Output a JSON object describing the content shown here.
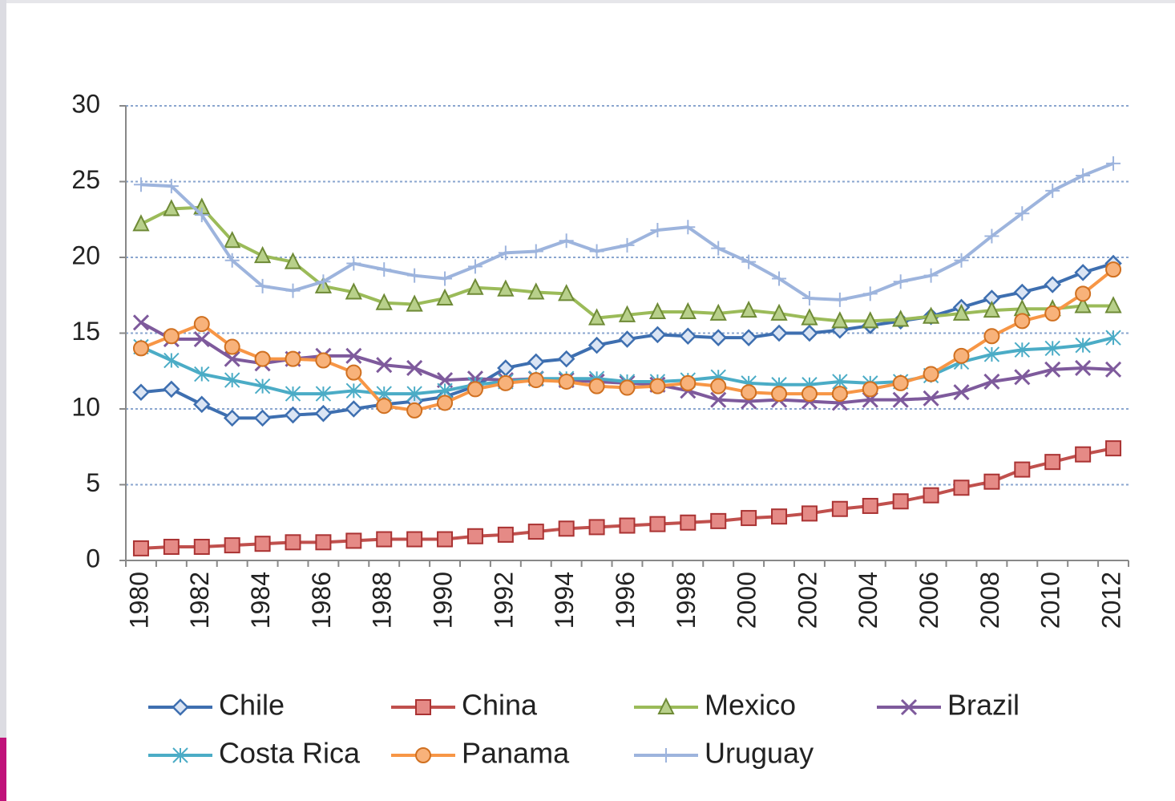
{
  "chart_data": {
    "type": "line",
    "categories": [
      "1980",
      null,
      "1982",
      null,
      "1984",
      null,
      "1986",
      null,
      "1988",
      null,
      "1990",
      null,
      "1992",
      null,
      "1994",
      null,
      "1996",
      null,
      "1998",
      null,
      "2000",
      null,
      "2002",
      null,
      "2004",
      null,
      "2006",
      null,
      "2008",
      null,
      "2010",
      null,
      "2012"
    ],
    "ylim": [
      0,
      30
    ],
    "yticks": [
      0,
      5,
      10,
      15,
      20,
      25,
      30
    ],
    "grid": true,
    "series": [
      {
        "name": "Chile",
        "color": "#3e6fb0",
        "marker": "diamond",
        "values": [
          11.1,
          11.3,
          10.3,
          9.4,
          9.4,
          9.6,
          9.7,
          10.0,
          10.3,
          10.5,
          10.8,
          11.5,
          12.7,
          13.1,
          13.3,
          14.2,
          14.6,
          14.9,
          14.8,
          14.7,
          14.7,
          15.0,
          15.0,
          15.2,
          15.5,
          15.8,
          16.1,
          16.7,
          17.3,
          17.7,
          18.2,
          19.0,
          19.6
        ]
      },
      {
        "name": "China",
        "color": "#c0504d",
        "marker": "square",
        "values": [
          0.8,
          0.9,
          0.9,
          1.0,
          1.1,
          1.2,
          1.2,
          1.3,
          1.4,
          1.4,
          1.4,
          1.6,
          1.7,
          1.9,
          2.1,
          2.2,
          2.3,
          2.4,
          2.5,
          2.6,
          2.8,
          2.9,
          3.1,
          3.4,
          3.6,
          3.9,
          4.3,
          4.8,
          5.2,
          6.0,
          6.5,
          7.0,
          7.4
        ]
      },
      {
        "name": "Mexico",
        "color": "#9bbb59",
        "marker": "triangle",
        "values": [
          22.2,
          23.2,
          23.3,
          21.1,
          20.1,
          19.7,
          18.1,
          17.7,
          17.0,
          16.9,
          17.3,
          18.0,
          17.9,
          17.7,
          17.6,
          16.0,
          16.2,
          16.4,
          16.4,
          16.3,
          16.5,
          16.3,
          16.0,
          15.8,
          15.8,
          15.9,
          16.1,
          16.3,
          16.5,
          16.6,
          16.6,
          16.8,
          16.8
        ]
      },
      {
        "name": "Brazil",
        "color": "#7e5a9c",
        "marker": "x",
        "values": [
          15.7,
          14.6,
          14.6,
          13.3,
          13.0,
          13.3,
          13.5,
          13.5,
          12.9,
          12.7,
          11.9,
          12.0,
          11.9,
          12.0,
          11.9,
          11.8,
          11.7,
          11.6,
          11.2,
          10.6,
          10.5,
          10.6,
          10.5,
          10.4,
          10.6,
          10.6,
          10.7,
          11.1,
          11.8,
          12.1,
          12.6,
          12.7,
          12.6
        ]
      },
      {
        "name": "Costa Rica",
        "color": "#4bacc6",
        "marker": "asterisk",
        "values": [
          14.1,
          13.2,
          12.3,
          11.9,
          11.5,
          11.0,
          11.0,
          11.2,
          11.0,
          11.0,
          11.2,
          11.6,
          11.8,
          12.0,
          12.0,
          12.0,
          11.8,
          11.8,
          11.9,
          12.1,
          11.7,
          11.6,
          11.6,
          11.8,
          11.7,
          11.8,
          12.2,
          13.1,
          13.6,
          13.9,
          14.0,
          14.2,
          14.7
        ]
      },
      {
        "name": "Panama",
        "color": "#f79646",
        "marker": "circle",
        "values": [
          14.0,
          14.8,
          15.6,
          14.1,
          13.3,
          13.3,
          13.2,
          12.4,
          10.2,
          9.9,
          10.4,
          11.3,
          11.7,
          11.9,
          11.8,
          11.5,
          11.4,
          11.5,
          11.7,
          11.5,
          11.1,
          11.0,
          11.0,
          11.0,
          11.3,
          11.7,
          12.3,
          13.5,
          14.8,
          15.8,
          16.3,
          17.6,
          19.2
        ]
      },
      {
        "name": "Uruguay",
        "color": "#9db4dd",
        "marker": "plus",
        "values": [
          24.8,
          24.7,
          22.8,
          19.8,
          18.1,
          17.8,
          18.4,
          19.6,
          19.2,
          18.8,
          18.6,
          19.4,
          20.3,
          20.4,
          21.1,
          20.4,
          20.8,
          21.8,
          22.0,
          20.6,
          19.7,
          18.6,
          17.3,
          17.2,
          17.6,
          18.4,
          18.8,
          19.8,
          21.4,
          22.9,
          24.4,
          25.4,
          26.2
        ]
      }
    ]
  }
}
